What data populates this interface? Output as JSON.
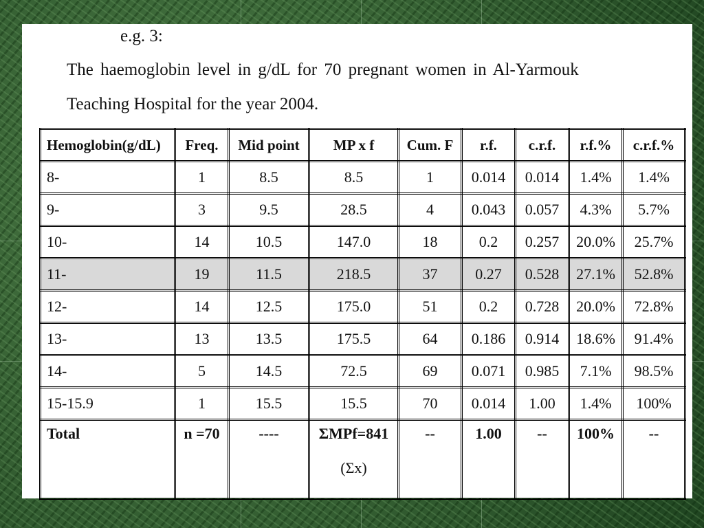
{
  "header": {
    "example": "e.g. 3:",
    "lines": [
      "The haemoglobin level in g/dL for 70 pregnant women in Al-Yarmouk",
      "Teaching Hospital for the year 2004."
    ]
  },
  "table": {
    "columns": [
      "Hemoglobin(g/dL)",
      "Freq.",
      "Mid point",
      "MP x f",
      "Cum. F",
      "r.f.",
      "c.r.f.",
      "r.f.%",
      "c.r.f.%"
    ],
    "rows": [
      [
        "8-",
        "1",
        "8.5",
        "8.5",
        "1",
        "0.014",
        "0.014",
        "1.4%",
        "1.4%"
      ],
      [
        "9-",
        "3",
        "9.5",
        "28.5",
        "4",
        "0.043",
        "0.057",
        "4.3%",
        "5.7%"
      ],
      [
        "10-",
        "14",
        "10.5",
        "147.0",
        "18",
        "0.2",
        "0.257",
        "20.0%",
        "25.7%"
      ],
      [
        "11-",
        "19",
        "11.5",
        "218.5",
        "37",
        "0.27",
        "0.528",
        "27.1%",
        "52.8%"
      ],
      [
        "12-",
        "14",
        "12.5",
        "175.0",
        "51",
        "0.2",
        "0.728",
        "20.0%",
        "72.8%"
      ],
      [
        "13-",
        "13",
        "13.5",
        "175.5",
        "64",
        "0.186",
        "0.914",
        "18.6%",
        "91.4%"
      ],
      [
        "14-",
        "5",
        "14.5",
        "72.5",
        "69",
        "0.071",
        "0.985",
        "7.1%",
        "98.5%"
      ],
      [
        "15-15.9",
        "1",
        "15.5",
        "15.5",
        "70",
        "0.014",
        "1.00",
        "1.4%",
        "100%"
      ]
    ],
    "total": [
      "Total",
      "n =70",
      "----",
      [
        "ΣMPf=841",
        "(Σx)"
      ],
      "--",
      "1.00",
      "--",
      "100%",
      "--"
    ]
  }
}
